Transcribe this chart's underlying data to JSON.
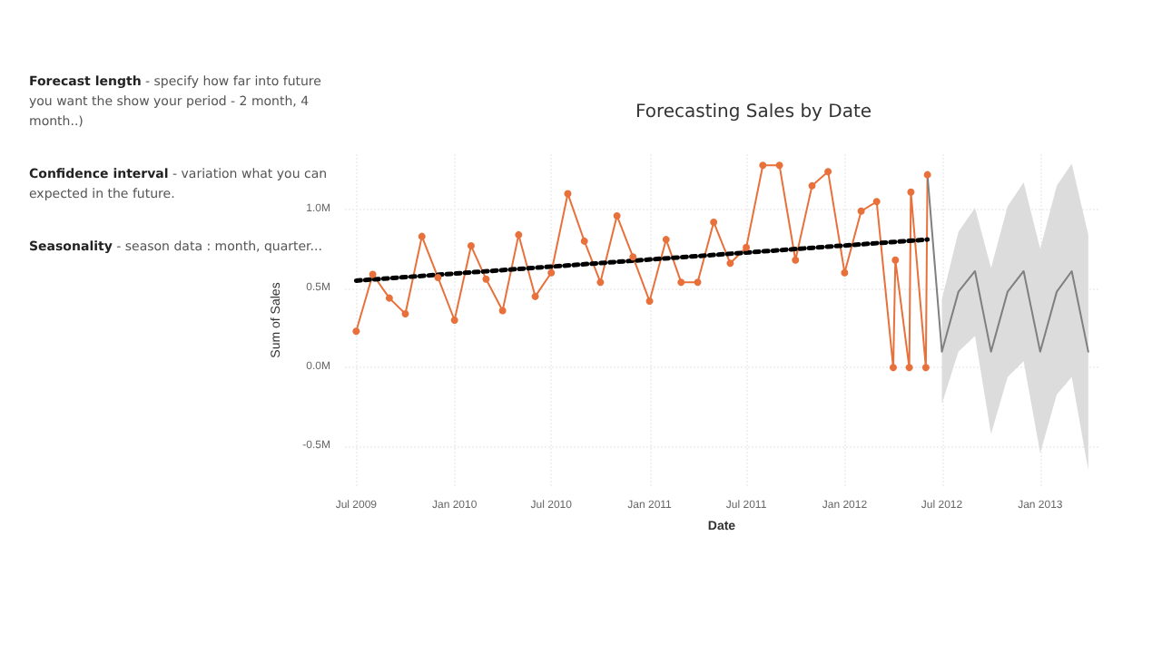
{
  "chart_data": {
    "type": "line",
    "title": "Forecasting Sales by Date",
    "xlabel": "Date",
    "ylabel": "Sum of Sales",
    "annotations": [
      "Forecast length - specify how far into future you want the show your period - 2 month, 4 month..)",
      "Confidence interval - variation what you can expected in the future.",
      "Seasonality - season data : month, quarter..."
    ],
    "series": [
      {
        "color": "#e8703a",
        "marker": "circle",
        "x": [
          "2009-07",
          "2009-08",
          "2009-09",
          "2009-10",
          "2009-11",
          "2009-12",
          "2010-01",
          "2010-02",
          "2010-03",
          "2010-04",
          "2010-05",
          "2010-06",
          "2010-07",
          "2010-08",
          "2010-09",
          "2010-10",
          "2010-11",
          "2010-12",
          "2011-01",
          "2011-02",
          "2011-03",
          "2011-04",
          "2011-05",
          "2011-06",
          "2011-07",
          "2011-08",
          "2011-09",
          "2011-10",
          "2011-11",
          "2011-12",
          "2012-01",
          "2012-02",
          "2012-03",
          "2012-04-01",
          "2012-04-05",
          "2012-05-01",
          "2012-05-04",
          "2012-06-01",
          "2012-06-04"
        ],
        "values": [
          0.23,
          0.59,
          0.44,
          0.34,
          0.83,
          0.57,
          0.3,
          0.77,
          0.56,
          0.36,
          0.84,
          0.45,
          0.6,
          1.1,
          0.8,
          0.54,
          0.96,
          0.7,
          0.42,
          0.81,
          0.54,
          0.54,
          0.92,
          0.66,
          0.76,
          1.28,
          1.28,
          0.68,
          1.15,
          1.24,
          0.6,
          0.99,
          1.05,
          0,
          0.68,
          0,
          1.11,
          0,
          1.22
        ]
      },
      {
        "color": "#7f7f7f",
        "marker": "none",
        "x": [
          "2012-06-04",
          "2012-07",
          "2012-08",
          "2012-09",
          "2012-10",
          "2012-11",
          "2012-12",
          "2013-01",
          "2013-02",
          "2013-03",
          "2013-04"
        ],
        "values": [
          1.22,
          0.1,
          0.48,
          0.61,
          0.1,
          0.48,
          0.61,
          0.1,
          0.48,
          0.61,
          0.1
        ],
        "lower": [
          null,
          -0.23,
          0.1,
          0.2,
          -0.42,
          -0.06,
          0.04,
          -0.54,
          -0.17,
          -0.06,
          -0.65
        ],
        "upper": [
          null,
          0.43,
          0.86,
          1.01,
          0.63,
          1.02,
          1.17,
          0.75,
          1.15,
          1.29,
          0.84
        ]
      },
      {
        "color": "#000000",
        "marker": "none",
        "line_style": "dotted",
        "x": [
          "2009-07",
          "2012-06-04"
        ],
        "values": [
          0.55,
          0.81
        ]
      }
    ],
    "xlim": [
      "2009-06-10",
      "2013-04-20"
    ],
    "xticks": [
      {
        "value": "2009-07",
        "label": "Jul 2009"
      },
      {
        "value": "2010-01",
        "label": "Jan 2010"
      },
      {
        "value": "2010-07",
        "label": "Jul 2010"
      },
      {
        "value": "2011-01",
        "label": "Jan 2011"
      },
      {
        "value": "2011-07",
        "label": "Jul 2011"
      },
      {
        "value": "2012-01",
        "label": "Jan 2012"
      },
      {
        "value": "2012-07",
        "label": "Jul 2012"
      },
      {
        "value": "2013-01",
        "label": "Jan 2013"
      }
    ],
    "ylim": [
      -0.75,
      1.35
    ],
    "yticks": [
      {
        "value": -0.5,
        "label": "-0.5M"
      },
      {
        "value": 0,
        "label": "0.0M"
      },
      {
        "value": 0.5,
        "label": "0.5M"
      },
      {
        "value": 1,
        "label": "1.0M"
      }
    ],
    "grid": true
  }
}
